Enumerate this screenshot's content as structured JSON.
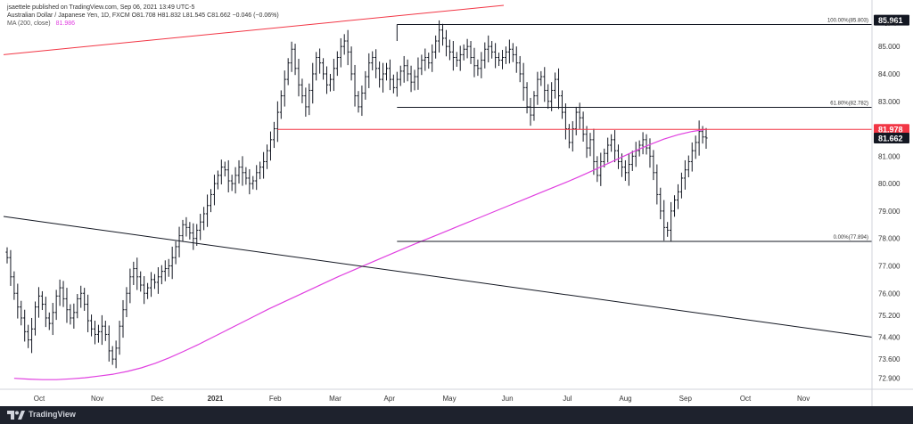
{
  "header": {
    "line1": "jsaettele published on TradingView.com, Sep 06, 2021 13:49 UTC-5",
    "line2": "Australian Dollar / Japanese Yen, 1D, FXCM  O81.708  H81.832  L81.545  C81.662  −0.046 (−0.06%)",
    "ma_label": "MA (200, close)",
    "ma_value": "81.986"
  },
  "currency": "JPY",
  "footer_brand": "TradingView",
  "chart_data": {
    "type": "candlestick",
    "title": "Australian Dollar / Japanese Yen, 1D, FXCM",
    "y_range": [
      72.5,
      86.5
    ],
    "y_ticks": [
      "85.000",
      "84.000",
      "83.000",
      "81.000",
      "80.000",
      "79.000",
      "78.000",
      "77.000",
      "76.000",
      "75.200",
      "74.400",
      "73.600",
      "72.900"
    ],
    "x_labels": [
      {
        "text": "Oct",
        "bold": false
      },
      {
        "text": "Nov",
        "bold": false
      },
      {
        "text": "Dec",
        "bold": false
      },
      {
        "text": "2021",
        "bold": true
      },
      {
        "text": "Feb",
        "bold": false
      },
      {
        "text": "Mar",
        "bold": false
      },
      {
        "text": "Apr",
        "bold": false
      },
      {
        "text": "May",
        "bold": false
      },
      {
        "text": "Jun",
        "bold": false
      },
      {
        "text": "Jul",
        "bold": false
      },
      {
        "text": "Aug",
        "bold": false
      },
      {
        "text": "Sep",
        "bold": false
      },
      {
        "text": "Oct",
        "bold": false
      },
      {
        "text": "Nov",
        "bold": false
      }
    ],
    "price_badges": [
      {
        "text": "85.961",
        "value": 85.961,
        "color": "#131722"
      },
      {
        "text": "81.978",
        "value": 81.978,
        "color": "#f23645"
      },
      {
        "text": "81.662",
        "value": 81.662,
        "color": "#131722"
      }
    ],
    "fib_levels": [
      {
        "label": "100.00%(85.803)",
        "value": 85.803
      },
      {
        "label": "61.80%(82.782)",
        "value": 82.782
      },
      {
        "label": "0.00%(77.894)",
        "value": 77.894
      }
    ],
    "closes": [
      77.3,
      76.6,
      76.0,
      75.5,
      75.1,
      74.6,
      74.3,
      74.7,
      75.5,
      75.9,
      75.6,
      75.1,
      74.9,
      75.3,
      75.9,
      76.2,
      75.8,
      75.4,
      75.1,
      75.3,
      75.8,
      76.0,
      75.6,
      75.0,
      74.7,
      74.5,
      74.6,
      74.8,
      74.5,
      73.9,
      73.6,
      74.0,
      74.8,
      75.4,
      76.0,
      76.6,
      76.9,
      76.6,
      76.3,
      76.0,
      76.2,
      76.5,
      76.4,
      76.6,
      76.8,
      76.9,
      77.0,
      77.3,
      77.7,
      78.1,
      78.5,
      78.4,
      78.2,
      78.0,
      78.3,
      78.6,
      78.9,
      79.2,
      79.6,
      80.0,
      80.3,
      80.6,
      80.5,
      80.1,
      80.0,
      80.3,
      80.6,
      80.4,
      80.2,
      80.0,
      80.1,
      80.4,
      80.6,
      80.8,
      81.2,
      81.6,
      82.0,
      82.6,
      83.2,
      83.8,
      84.4,
      84.9,
      84.2,
      83.6,
      83.2,
      82.8,
      83.4,
      84.0,
      84.6,
      84.4,
      84.0,
      83.6,
      83.8,
      84.2,
      84.6,
      85.0,
      85.2,
      84.8,
      84.0,
      83.2,
      82.8,
      83.3,
      83.9,
      84.4,
      84.6,
      84.2,
      83.8,
      84.0,
      84.2,
      83.8,
      83.5,
      83.8,
      84.1,
      84.3,
      84.0,
      83.7,
      83.9,
      84.2,
      84.5,
      84.6,
      84.4,
      84.8,
      85.2,
      85.6,
      85.3,
      85.0,
      84.8,
      84.6,
      84.5,
      84.7,
      84.9,
      85.0,
      84.6,
      84.3,
      84.2,
      84.5,
      84.9,
      85.0,
      84.8,
      84.6,
      84.5,
      84.6,
      84.8,
      84.9,
      84.7,
      84.4,
      84.0,
      83.5,
      82.8,
      82.5,
      83.2,
      83.8,
      83.9,
      83.4,
      83.0,
      83.4,
      83.8,
      83.2,
      82.6,
      82.0,
      81.5,
      82.0,
      82.6,
      82.4,
      81.8,
      81.3,
      81.6,
      80.8,
      80.3,
      80.8,
      81.1,
      81.4,
      81.6,
      81.2,
      80.8,
      80.6,
      80.4,
      80.7,
      81.0,
      81.2,
      81.4,
      81.6,
      81.3,
      81.0,
      80.4,
      79.6,
      79.0,
      78.4,
      78.3,
      79.0,
      79.4,
      79.7,
      80.2,
      80.5,
      80.8,
      81.2,
      81.5,
      81.9,
      81.7,
      81.662
    ],
    "ma200": [
      72.9,
      72.87,
      72.85,
      72.85,
      72.88,
      72.92,
      72.98,
      73.05,
      73.15,
      73.28,
      73.45,
      73.65,
      73.88,
      74.12,
      74.38,
      74.64,
      74.9,
      75.16,
      75.42,
      75.66,
      75.9,
      76.14,
      76.38,
      76.62,
      76.84,
      77.06,
      77.28,
      77.5,
      77.72,
      77.93,
      78.14,
      78.35,
      78.56,
      78.77,
      78.98,
      79.19,
      79.4,
      79.61,
      79.82,
      80.03,
      80.25,
      80.48,
      80.72,
      80.96,
      81.2,
      81.42,
      81.62,
      81.78,
      81.9,
      81.98
    ]
  }
}
